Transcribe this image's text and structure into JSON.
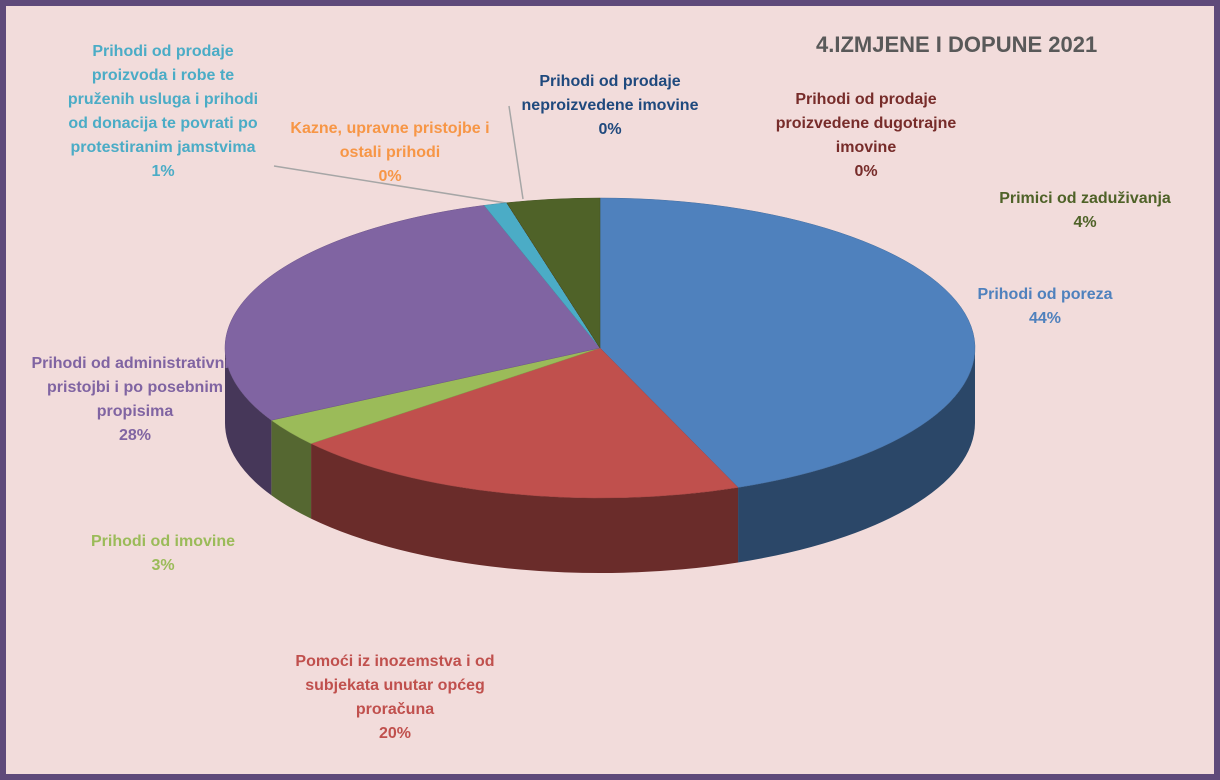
{
  "chart_data": {
    "type": "pie3d",
    "title": "4.IZMJENE I DOPUNE 2021",
    "categories": [
      "Prihodi od poreza",
      "Pomoći iz inozemstva i od subjekata unutar općeg proračuna",
      "Prihodi od imovine",
      "Prihodi od administrativnih pristojbi i po posebnim propisima",
      "Prihodi od prodaje proizvoda i robe te pruženih usluga i prihodi od donacija te povrati po protestiranim jamstvima",
      "Kazne, upravne pristojbe i ostali prihodi",
      "Prihodi od prodaje neproizvedene imovine",
      "Prihodi od prodaje proizvedene dugotrajne imovine",
      "Primici od zaduživanja"
    ],
    "values": [
      44,
      20,
      3,
      28,
      1,
      0,
      0,
      0,
      4
    ],
    "value_labels": [
      "44%",
      "20%",
      "3%",
      "28%",
      "1%",
      "0%",
      "0%",
      "0%",
      "4%"
    ],
    "colors": [
      "#4f81bd",
      "#c0504d",
      "#9bbb59",
      "#8064a2",
      "#4bacc6",
      "#f79646",
      "#1f497d",
      "#772c2a",
      "#4f6228"
    ]
  }
}
